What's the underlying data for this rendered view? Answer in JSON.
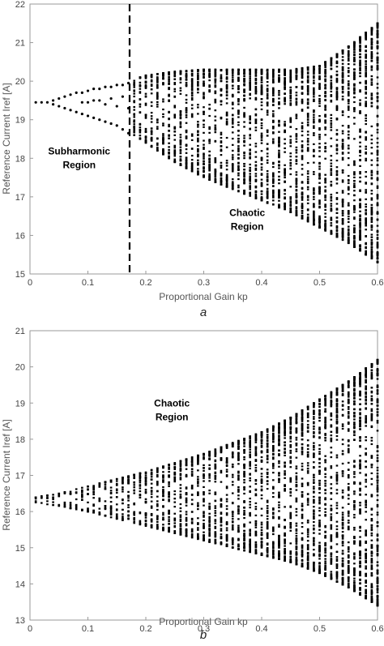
{
  "chart_data": [
    {
      "type": "scatter",
      "panel_label": "a",
      "xlabel": "Proportional Gain kp",
      "ylabel": "Reference Current Iref [A]",
      "xlim": [
        0,
        0.6
      ],
      "ylim": [
        15,
        22
      ],
      "xticks": [
        0,
        0.1,
        0.2,
        0.3,
        0.4,
        0.5,
        0.6
      ],
      "xtick_labels": [
        "0",
        "0.1",
        "0.2",
        "0.3",
        "0.4",
        "0.5",
        "0.6"
      ],
      "yticks": [
        15,
        16,
        17,
        18,
        19,
        20,
        21,
        22
      ],
      "ytick_labels": [
        "15",
        "16",
        "17",
        "18",
        "19",
        "20",
        "21",
        "22"
      ],
      "grid": false,
      "boundary_line": {
        "x": 0.172,
        "style": "dashed"
      },
      "annotations": [
        {
          "text": [
            "Subharmonic",
            "Region"
          ],
          "x": 0.085,
          "y": 18.1
        },
        {
          "text": [
            "Chaotic",
            "Region"
          ],
          "x": 0.375,
          "y": 16.5
        }
      ],
      "series": [
        {
          "points": [
            {
              "x": 0.01,
              "y": 19.45
            },
            {
              "x": 0.02,
              "y": 19.45
            },
            {
              "x": 0.03,
              "y": 19.45
            },
            {
              "x": 0.04,
              "y": 19.5
            },
            {
              "x": 0.04,
              "y": 19.4
            },
            {
              "x": 0.05,
              "y": 19.55
            },
            {
              "x": 0.05,
              "y": 19.35
            },
            {
              "x": 0.06,
              "y": 19.6
            },
            {
              "x": 0.06,
              "y": 19.3
            },
            {
              "x": 0.07,
              "y": 19.65
            },
            {
              "x": 0.07,
              "y": 19.25
            },
            {
              "x": 0.08,
              "y": 19.7
            },
            {
              "x": 0.08,
              "y": 19.2
            },
            {
              "x": 0.09,
              "y": 19.7
            },
            {
              "x": 0.09,
              "y": 19.15
            },
            {
              "x": 0.09,
              "y": 19.45
            },
            {
              "x": 0.1,
              "y": 19.75
            },
            {
              "x": 0.1,
              "y": 19.1
            },
            {
              "x": 0.1,
              "y": 19.45
            },
            {
              "x": 0.11,
              "y": 19.8
            },
            {
              "x": 0.11,
              "y": 19.05
            },
            {
              "x": 0.11,
              "y": 19.5
            },
            {
              "x": 0.12,
              "y": 19.8
            },
            {
              "x": 0.12,
              "y": 19.0
            },
            {
              "x": 0.12,
              "y": 19.5
            },
            {
              "x": 0.13,
              "y": 19.85
            },
            {
              "x": 0.13,
              "y": 18.95
            },
            {
              "x": 0.13,
              "y": 19.4
            },
            {
              "x": 0.14,
              "y": 19.85
            },
            {
              "x": 0.14,
              "y": 18.9
            },
            {
              "x": 0.14,
              "y": 19.55
            },
            {
              "x": 0.15,
              "y": 19.9
            },
            {
              "x": 0.15,
              "y": 18.85
            },
            {
              "x": 0.15,
              "y": 19.35
            },
            {
              "x": 0.16,
              "y": 19.9
            },
            {
              "x": 0.16,
              "y": 18.75
            },
            {
              "x": 0.16,
              "y": 19.6
            },
            {
              "x": 0.17,
              "y": 19.95
            },
            {
              "x": 0.17,
              "y": 18.65
            },
            {
              "x": 0.17,
              "y": 19.3
            }
          ]
        }
      ],
      "envelope": {
        "x": [
          0.18,
          0.2,
          0.25,
          0.3,
          0.35,
          0.4,
          0.45,
          0.5,
          0.55,
          0.6
        ],
        "y_upper": [
          20.05,
          20.15,
          20.25,
          20.3,
          20.3,
          20.3,
          20.3,
          20.4,
          20.9,
          21.5
        ],
        "y_lower": [
          18.6,
          18.4,
          17.9,
          17.5,
          17.2,
          16.9,
          16.6,
          16.2,
          15.8,
          15.3
        ]
      }
    },
    {
      "type": "scatter",
      "panel_label": "b",
      "xlabel": "Proportional Gain kp",
      "ylabel": "Reference Current Iref [A]",
      "xlim": [
        0,
        0.6
      ],
      "ylim": [
        13,
        21
      ],
      "xticks": [
        0,
        0.1,
        0.2,
        0.3,
        0.4,
        0.5,
        0.6
      ],
      "xtick_labels": [
        "0",
        "0.1",
        "0.2",
        "0.3",
        "0.4",
        "0.5",
        "0.6"
      ],
      "yticks": [
        13,
        14,
        15,
        16,
        17,
        18,
        19,
        20,
        21
      ],
      "ytick_labels": [
        "13",
        "14",
        "15",
        "16",
        "17",
        "18",
        "19",
        "20",
        "21"
      ],
      "grid": false,
      "annotations": [
        {
          "text": [
            "Chaotic",
            "Region"
          ],
          "x": 0.245,
          "y": 18.9
        }
      ],
      "envelope": {
        "x": [
          0.01,
          0.05,
          0.1,
          0.15,
          0.2,
          0.25,
          0.3,
          0.35,
          0.4,
          0.45,
          0.5,
          0.55,
          0.6
        ],
        "y_upper": [
          16.4,
          16.5,
          16.7,
          16.9,
          17.1,
          17.35,
          17.6,
          17.9,
          18.2,
          18.6,
          19.1,
          19.6,
          20.2
        ],
        "y_lower": [
          16.25,
          16.15,
          16.0,
          15.8,
          15.6,
          15.4,
          15.2,
          15.0,
          14.8,
          14.6,
          14.3,
          13.9,
          13.4
        ]
      }
    }
  ]
}
